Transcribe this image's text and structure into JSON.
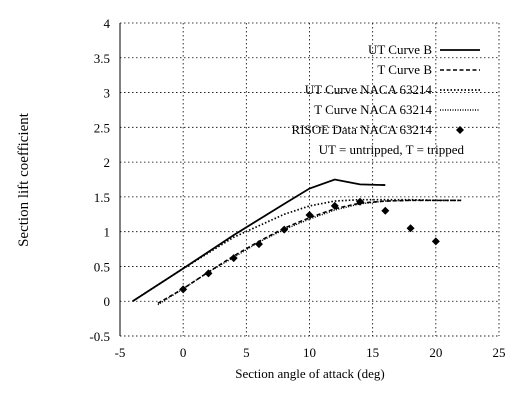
{
  "chart_data": {
    "type": "line",
    "title": "",
    "xlabel": "Section angle of attack (deg)",
    "ylabel": "Section lift coefficient",
    "xlim": [
      -5,
      25
    ],
    "ylim": [
      -0.5,
      4
    ],
    "xticks": [
      -5,
      0,
      5,
      10,
      15,
      20,
      25
    ],
    "yticks": [
      -0.5,
      0,
      0.5,
      1,
      1.5,
      2,
      2.5,
      3,
      3.5,
      4
    ],
    "xtick_labels": [
      "-5",
      "0",
      "5",
      "10",
      "15",
      "20",
      "25"
    ],
    "ytick_labels": [
      "-0.5",
      "0",
      "0.5",
      "1",
      "1.5",
      "2",
      "2.5",
      "3",
      "3.5",
      "4"
    ],
    "grid": "dotted",
    "legend_position": "top-right",
    "note": "UT = untripped, T = tripped",
    "series": [
      {
        "name": "UT Curve B",
        "style": "solid",
        "color": "#000000",
        "x": [
          -4,
          0,
          4,
          8,
          10,
          12,
          14,
          16
        ],
        "y": [
          0.0,
          0.47,
          0.95,
          1.4,
          1.62,
          1.75,
          1.68,
          1.67
        ]
      },
      {
        "name": "T Curve B",
        "style": "dashed",
        "color": "#000000",
        "x": [
          -2,
          0,
          2,
          4,
          6,
          8,
          10,
          12,
          14,
          16,
          18,
          20,
          22
        ],
        "y": [
          -0.03,
          0.18,
          0.42,
          0.65,
          0.86,
          1.05,
          1.2,
          1.33,
          1.41,
          1.44,
          1.45,
          1.45,
          1.45
        ]
      },
      {
        "name": "UT Curve NACA 63214",
        "style": "dotted",
        "color": "#000000",
        "x": [
          -4,
          0,
          4,
          8,
          10,
          12,
          14,
          16,
          18,
          20,
          22
        ],
        "y": [
          0.0,
          0.47,
          0.92,
          1.25,
          1.37,
          1.44,
          1.46,
          1.46,
          1.46,
          1.45,
          1.45
        ]
      },
      {
        "name": "T Curve NACA 63214",
        "style": "dashdot",
        "color": "#000000",
        "x": [
          -2,
          0,
          2,
          4,
          6,
          8,
          10,
          12,
          14,
          16,
          18,
          20,
          22
        ],
        "y": [
          -0.05,
          0.18,
          0.42,
          0.63,
          0.85,
          1.03,
          1.18,
          1.31,
          1.4,
          1.44,
          1.45,
          1.45,
          1.45
        ]
      },
      {
        "name": "RISOE Data NACA 63214",
        "style": "diamond-markers",
        "color": "#000000",
        "x": [
          0,
          2,
          4,
          6,
          8,
          10,
          12,
          14,
          16,
          18,
          20
        ],
        "y": [
          0.17,
          0.4,
          0.62,
          0.82,
          1.03,
          1.24,
          1.37,
          1.43,
          1.3,
          1.05,
          0.86
        ]
      }
    ]
  }
}
